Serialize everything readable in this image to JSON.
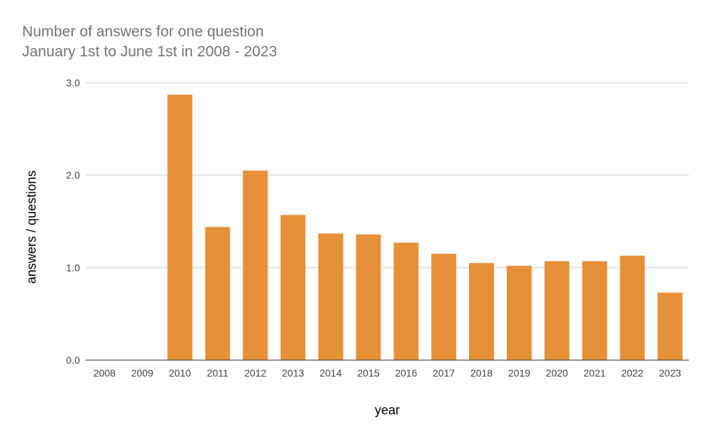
{
  "chart_data": {
    "type": "bar",
    "title": "Number of answers for one question",
    "subtitle": "January 1st to June 1st in 2008 - 2023",
    "xlabel": "year",
    "ylabel": "answers / questions",
    "categories": [
      "2008",
      "2009",
      "2010",
      "2011",
      "2012",
      "2013",
      "2014",
      "2015",
      "2016",
      "2017",
      "2018",
      "2019",
      "2020",
      "2021",
      "2022",
      "2023"
    ],
    "values": [
      0,
      0,
      2.87,
      1.44,
      2.05,
      1.57,
      1.37,
      1.36,
      1.27,
      1.15,
      1.05,
      1.02,
      1.07,
      1.07,
      1.13,
      0.73
    ],
    "yticks": [
      "0.0",
      "1.0",
      "2.0",
      "3.0"
    ],
    "ylim": [
      0,
      3
    ],
    "grid": true,
    "legend": "none",
    "bar_color": "#e69138",
    "grid_color": "#cccccc"
  }
}
